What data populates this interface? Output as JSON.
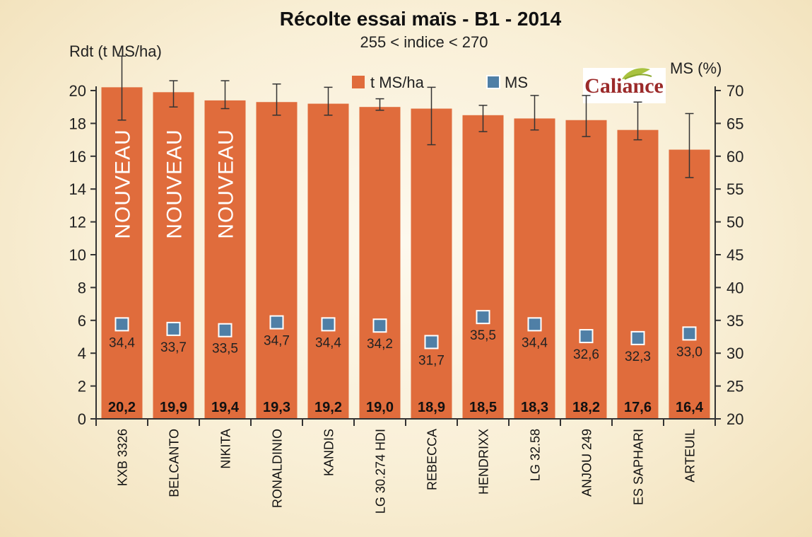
{
  "chart_data": {
    "type": "bar",
    "title": "Récolte essai maïs - B1 - 2014",
    "subtitle": "255 < indice < 270",
    "ylabel": "Rdt (t MS/ha)",
    "y2label": "MS (%)",
    "ylim": [
      0,
      20
    ],
    "y2lim": [
      20,
      70
    ],
    "yticks": [
      0,
      2,
      4,
      6,
      8,
      10,
      12,
      14,
      16,
      18,
      20
    ],
    "y2ticks": [
      20,
      25,
      30,
      35,
      40,
      45,
      50,
      55,
      60,
      65,
      70
    ],
    "legend_position": "top",
    "logo_text": "Caliance",
    "categories": [
      "KXB 3326",
      "BELCANTO",
      "NIKITA",
      "RONALDINIO",
      "KANDIS",
      "LG 30.274 HDI",
      "REBECCA",
      "HENDRIXX",
      "LG 32.58",
      "ANJOU 249",
      "ES SAPHARI",
      "ARTEUIL"
    ],
    "series": [
      {
        "name": "t MS/ha",
        "kind": "bar",
        "axis": "left",
        "color": "#e06c3c",
        "values": [
          20.2,
          19.9,
          19.4,
          19.3,
          19.2,
          19.0,
          18.9,
          18.5,
          18.3,
          18.2,
          17.6,
          16.4
        ],
        "labels": [
          "20,2",
          "19,9",
          "19,4",
          "19,3",
          "19,2",
          "19,0",
          "18,9",
          "18,5",
          "18,3",
          "18,2",
          "17,6",
          "16,4"
        ],
        "error_low": [
          18.2,
          19.0,
          18.9,
          18.5,
          18.5,
          18.8,
          16.7,
          17.5,
          17.6,
          17.2,
          17.0,
          14.7
        ],
        "error_high": [
          22.1,
          20.6,
          20.6,
          20.4,
          20.2,
          19.5,
          20.2,
          19.1,
          19.7,
          19.7,
          19.3,
          18.6
        ]
      },
      {
        "name": "MS",
        "kind": "marker",
        "axis": "right",
        "color": "#4f7fa6",
        "values": [
          34.4,
          33.7,
          33.5,
          34.7,
          34.4,
          34.2,
          31.7,
          35.5,
          34.4,
          32.6,
          32.3,
          33.0
        ],
        "labels": [
          "34,4",
          "33,7",
          "33,5",
          "34,7",
          "34,4",
          "34,2",
          "31,7",
          "35,5",
          "34,4",
          "32,6",
          "32,3",
          "33,0"
        ]
      }
    ],
    "annotations": [
      {
        "text": "NOUVEAU",
        "category": "KXB 3326"
      },
      {
        "text": "NOUVEAU",
        "category": "BELCANTO"
      },
      {
        "text": "NOUVEAU",
        "category": "NIKITA"
      }
    ]
  }
}
